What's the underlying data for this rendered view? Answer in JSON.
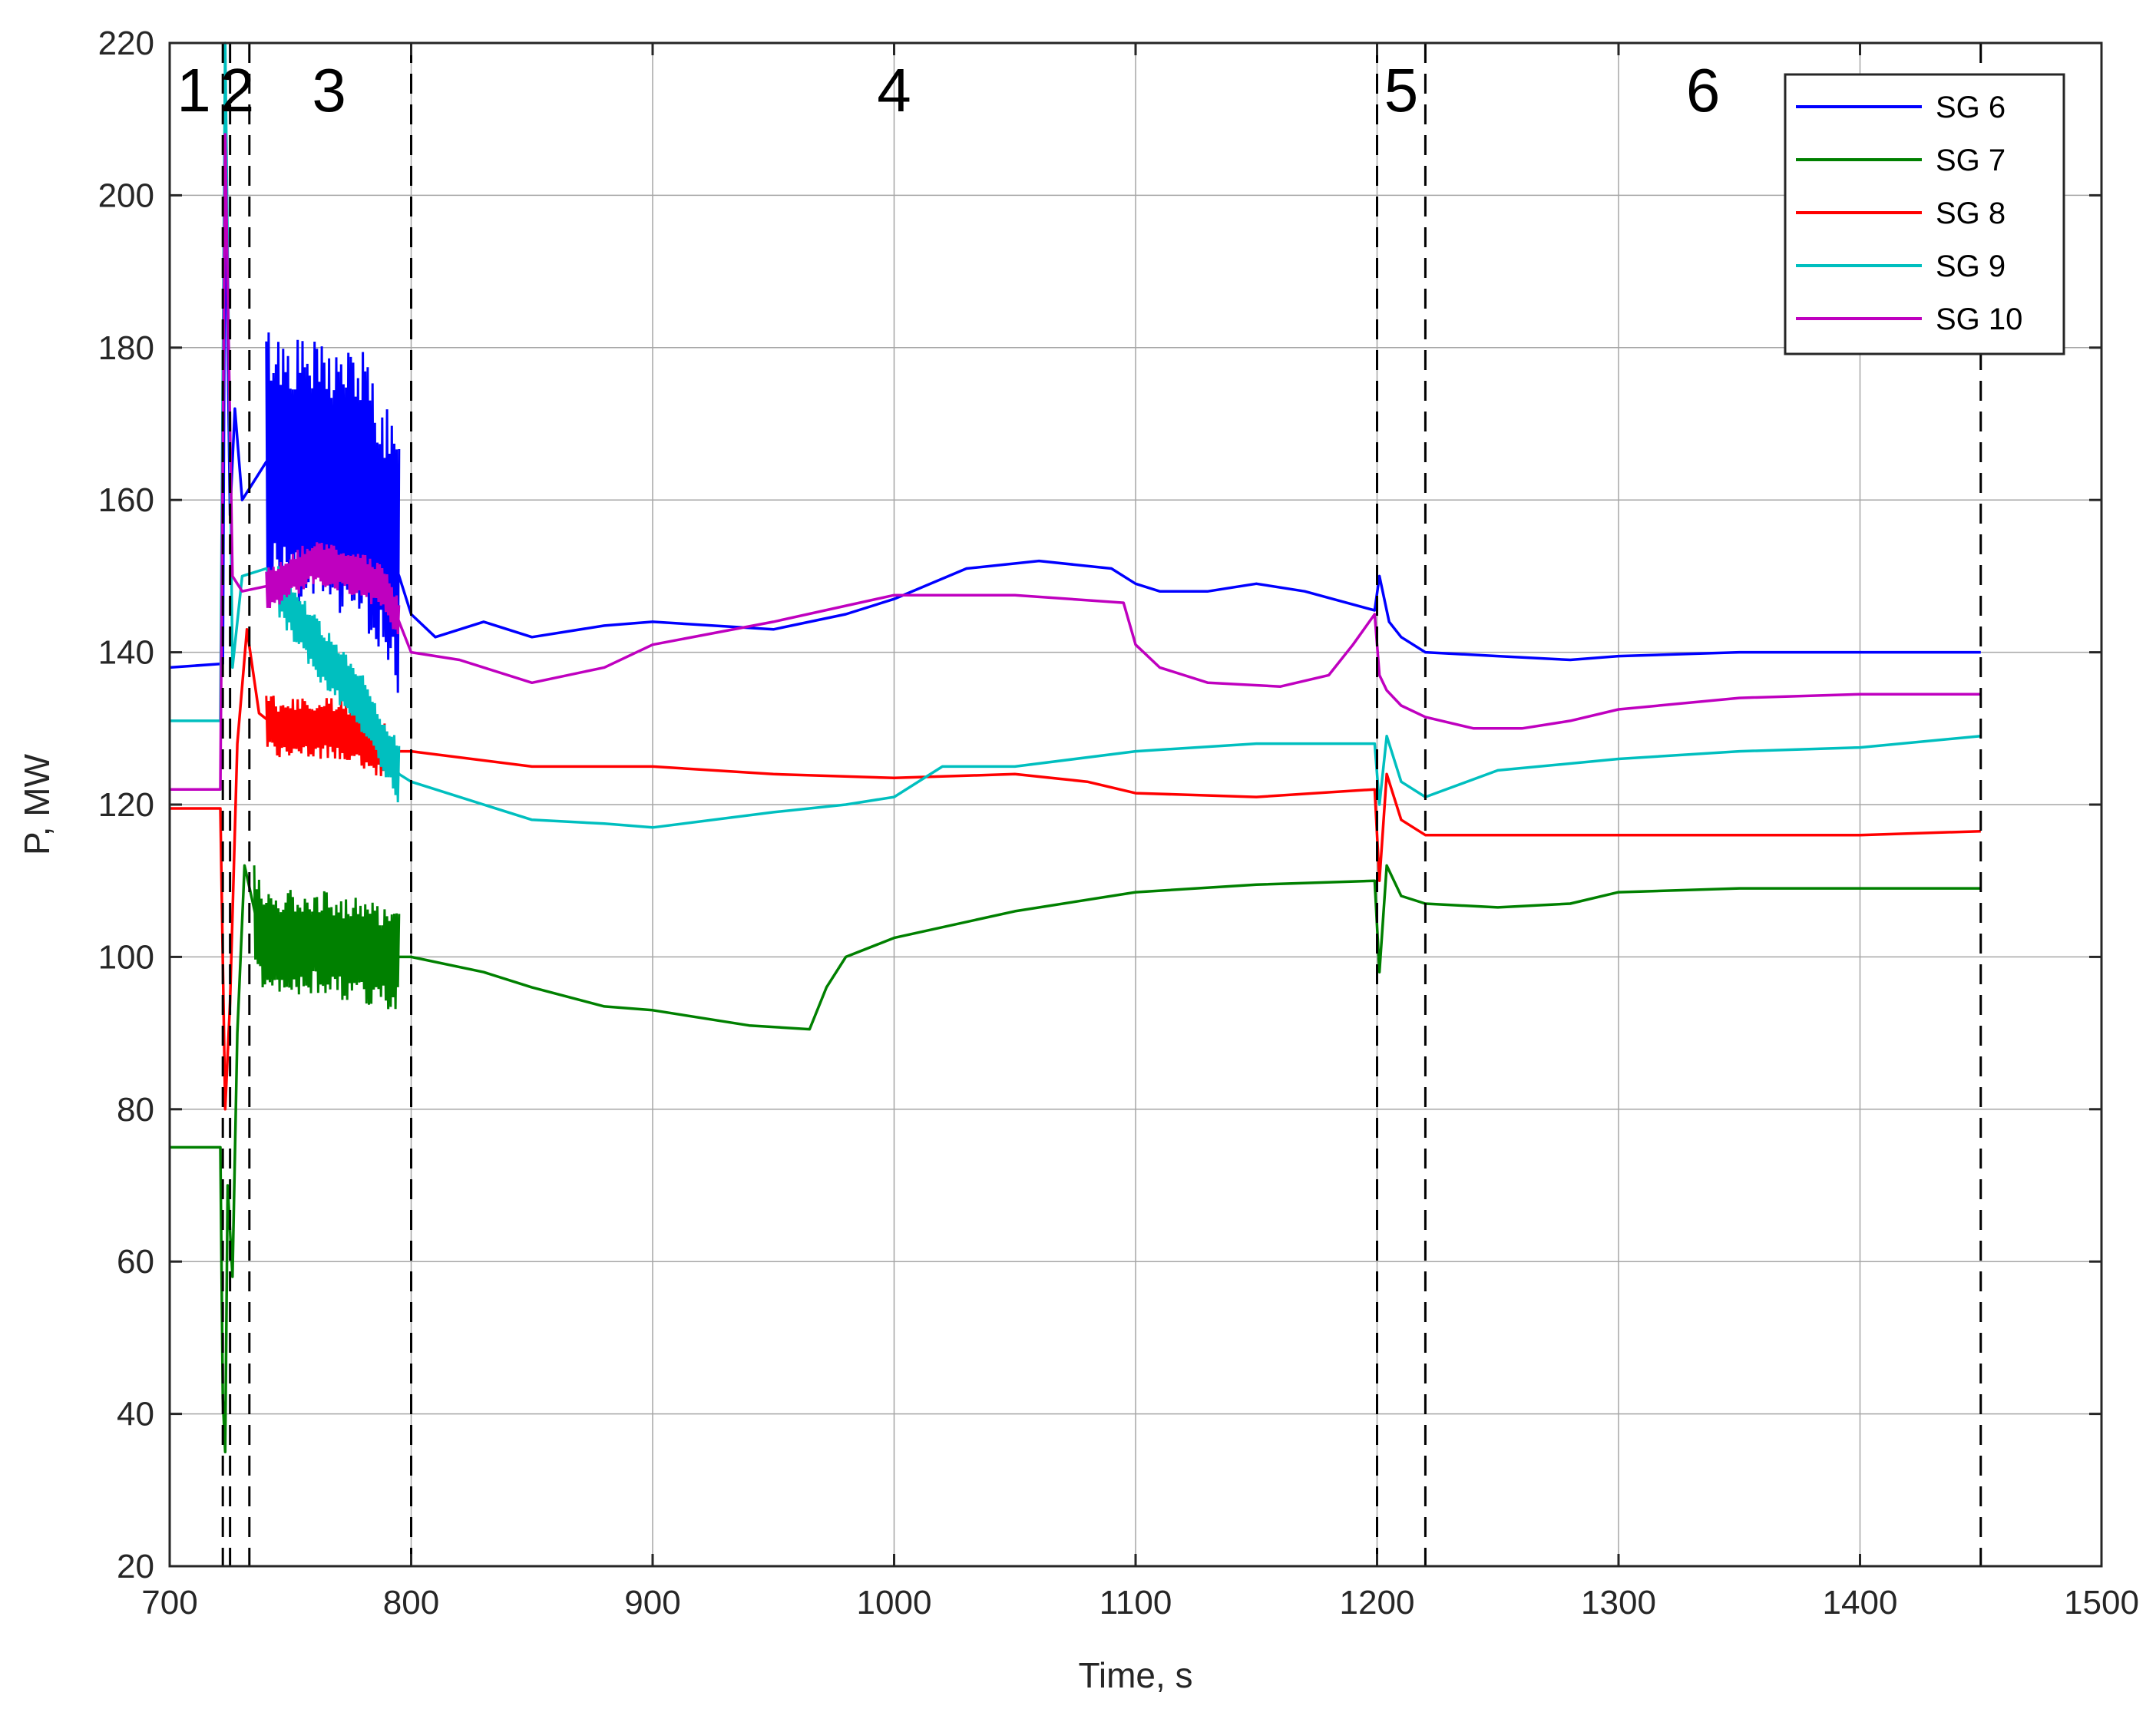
{
  "chart_data": {
    "type": "line",
    "title": "",
    "xlabel": "Time, s",
    "ylabel": "P, MW",
    "xlim": [
      700,
      1500
    ],
    "ylim": [
      20,
      220
    ],
    "xticks": [
      700,
      800,
      900,
      1000,
      1100,
      1200,
      1300,
      1400,
      1500
    ],
    "yticks": [
      20,
      40,
      60,
      80,
      100,
      120,
      140,
      160,
      180,
      200,
      220
    ],
    "grid": true,
    "legend_position": "top-right",
    "phase_boundaries": [
      722,
      725,
      733,
      800,
      1200,
      1220,
      1450
    ],
    "phase_labels": [
      {
        "text": "1",
        "x": 710
      },
      {
        "text": "2",
        "x": 728
      },
      {
        "text": "3",
        "x": 766
      },
      {
        "text": "4",
        "x": 1000
      },
      {
        "text": "5",
        "x": 1210
      },
      {
        "text": "6",
        "x": 1335
      }
    ],
    "series": [
      {
        "name": "SG 6",
        "color": "#0000ff",
        "points": [
          [
            700,
            138
          ],
          [
            722,
            138.5
          ],
          [
            723,
            205
          ],
          [
            725,
            158
          ],
          [
            727,
            172
          ],
          [
            730,
            160
          ],
          [
            740,
            165
          ],
          [
            760,
            163
          ],
          [
            780,
            162
          ],
          [
            795,
            150
          ],
          [
            800,
            145
          ],
          [
            810,
            142
          ],
          [
            830,
            144
          ],
          [
            850,
            142
          ],
          [
            880,
            143.5
          ],
          [
            900,
            144
          ],
          [
            950,
            143
          ],
          [
            980,
            145
          ],
          [
            1000,
            147
          ],
          [
            1030,
            151
          ],
          [
            1060,
            152
          ],
          [
            1090,
            151
          ],
          [
            1100,
            149
          ],
          [
            1110,
            148
          ],
          [
            1130,
            148
          ],
          [
            1150,
            149
          ],
          [
            1170,
            148
          ],
          [
            1199,
            145.5
          ],
          [
            1201,
            150
          ],
          [
            1205,
            144
          ],
          [
            1210,
            142
          ],
          [
            1220,
            140
          ],
          [
            1250,
            139.5
          ],
          [
            1280,
            139
          ],
          [
            1300,
            139.5
          ],
          [
            1350,
            140
          ],
          [
            1400,
            140
          ],
          [
            1450,
            140
          ]
        ],
        "band": {
          "from": 740,
          "to": 795,
          "amplitude": 18
        }
      },
      {
        "name": "SG 7",
        "color": "#008000",
        "points": [
          [
            700,
            75
          ],
          [
            721,
            75
          ],
          [
            722,
            42
          ],
          [
            723,
            35
          ],
          [
            724,
            70
          ],
          [
            726,
            58
          ],
          [
            728,
            90
          ],
          [
            731,
            112
          ],
          [
            738,
            102
          ],
          [
            760,
            102
          ],
          [
            790,
            100
          ],
          [
            800,
            100
          ],
          [
            830,
            98
          ],
          [
            850,
            96
          ],
          [
            880,
            93.5
          ],
          [
            900,
            93
          ],
          [
            940,
            91
          ],
          [
            965,
            90.5
          ],
          [
            972,
            96
          ],
          [
            980,
            100
          ],
          [
            1000,
            102.5
          ],
          [
            1050,
            106
          ],
          [
            1100,
            108.5
          ],
          [
            1150,
            109.5
          ],
          [
            1199,
            110
          ],
          [
            1201,
            98
          ],
          [
            1204,
            112
          ],
          [
            1210,
            108
          ],
          [
            1220,
            107
          ],
          [
            1250,
            106.5
          ],
          [
            1280,
            107
          ],
          [
            1300,
            108.5
          ],
          [
            1350,
            109
          ],
          [
            1400,
            109
          ],
          [
            1450,
            109
          ]
        ],
        "band": {
          "from": 735,
          "to": 795,
          "amplitude": 7
        }
      },
      {
        "name": "SG 8",
        "color": "#ff0000",
        "points": [
          [
            700,
            119.5
          ],
          [
            721,
            119.5
          ],
          [
            723,
            80
          ],
          [
            725,
            94
          ],
          [
            728,
            128
          ],
          [
            732,
            143
          ],
          [
            737,
            132
          ],
          [
            745,
            130
          ],
          [
            770,
            130
          ],
          [
            790,
            127
          ],
          [
            800,
            127
          ],
          [
            850,
            125
          ],
          [
            900,
            125
          ],
          [
            950,
            124
          ],
          [
            1000,
            123.5
          ],
          [
            1050,
            124
          ],
          [
            1080,
            123
          ],
          [
            1100,
            121.5
          ],
          [
            1150,
            121
          ],
          [
            1199,
            122
          ],
          [
            1201,
            110
          ],
          [
            1204,
            124
          ],
          [
            1210,
            118
          ],
          [
            1220,
            116
          ],
          [
            1260,
            116
          ],
          [
            1300,
            116
          ],
          [
            1350,
            116
          ],
          [
            1400,
            116
          ],
          [
            1450,
            116.5
          ]
        ],
        "band": {
          "from": 740,
          "to": 790,
          "amplitude": 4
        }
      },
      {
        "name": "SG 9",
        "color": "#00bfbf",
        "points": [
          [
            700,
            131
          ],
          [
            721,
            131
          ],
          [
            723,
            220
          ],
          [
            726,
            138
          ],
          [
            730,
            150
          ],
          [
            740,
            151
          ],
          [
            760,
            141
          ],
          [
            780,
            133
          ],
          [
            795,
            124
          ],
          [
            800,
            123
          ],
          [
            820,
            121
          ],
          [
            850,
            118
          ],
          [
            880,
            117.5
          ],
          [
            900,
            117
          ],
          [
            950,
            119
          ],
          [
            980,
            120
          ],
          [
            1000,
            121
          ],
          [
            1020,
            125
          ],
          [
            1050,
            125
          ],
          [
            1100,
            127
          ],
          [
            1150,
            128
          ],
          [
            1199,
            128
          ],
          [
            1201,
            120
          ],
          [
            1204,
            129
          ],
          [
            1210,
            123
          ],
          [
            1220,
            121
          ],
          [
            1250,
            124.5
          ],
          [
            1300,
            126
          ],
          [
            1350,
            127
          ],
          [
            1400,
            127.5
          ],
          [
            1450,
            129
          ]
        ],
        "band": {
          "from": 745,
          "to": 795,
          "amplitude": 4
        }
      },
      {
        "name": "SG 10",
        "color": "#bf00bf",
        "points": [
          [
            700,
            122
          ],
          [
            721,
            122
          ],
          [
            723,
            208
          ],
          [
            726,
            150
          ],
          [
            730,
            148
          ],
          [
            745,
            149
          ],
          [
            760,
            152
          ],
          [
            780,
            150
          ],
          [
            790,
            148
          ],
          [
            800,
            140
          ],
          [
            820,
            139
          ],
          [
            850,
            136
          ],
          [
            880,
            138
          ],
          [
            900,
            141
          ],
          [
            950,
            144
          ],
          [
            1000,
            147.5
          ],
          [
            1050,
            147.5
          ],
          [
            1095,
            146.5
          ],
          [
            1100,
            141
          ],
          [
            1110,
            138
          ],
          [
            1130,
            136
          ],
          [
            1160,
            135.5
          ],
          [
            1180,
            137
          ],
          [
            1190,
            141
          ],
          [
            1199,
            145
          ],
          [
            1201,
            137
          ],
          [
            1204,
            135
          ],
          [
            1210,
            133
          ],
          [
            1220,
            131.5
          ],
          [
            1240,
            130
          ],
          [
            1260,
            130
          ],
          [
            1280,
            131
          ],
          [
            1300,
            132.5
          ],
          [
            1350,
            134
          ],
          [
            1400,
            134.5
          ],
          [
            1450,
            134.5
          ]
        ],
        "band": {
          "from": 740,
          "to": 795,
          "amplitude": 3
        }
      }
    ]
  }
}
